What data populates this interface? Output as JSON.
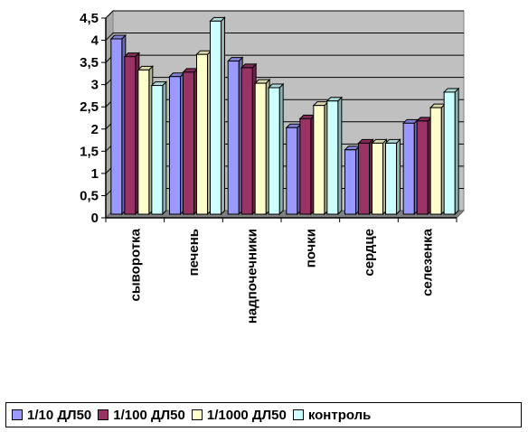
{
  "chart_data": {
    "type": "bar",
    "title": "",
    "xlabel": "",
    "ylabel": "",
    "ylim": [
      0,
      4.5
    ],
    "yticks": [
      "0",
      "0,5",
      "1",
      "1,5",
      "2",
      "2,5",
      "3",
      "3,5",
      "4",
      "4,5"
    ],
    "grid": true,
    "legend_position": "bottom",
    "categories": [
      "сыворотка",
      "печень",
      "надпочечники",
      "почки",
      "сердце",
      "селезенка"
    ],
    "series": [
      {
        "name": "1/10 ДЛ50",
        "color": "#9999ff",
        "values": [
          3.95,
          3.1,
          3.45,
          1.95,
          1.45,
          2.05
        ]
      },
      {
        "name": "1/100 ДЛ50",
        "color": "#993366",
        "values": [
          3.55,
          3.2,
          3.3,
          2.15,
          1.6,
          2.1
        ]
      },
      {
        "name": "1/1000 ДЛ50",
        "color": "#ffffcc",
        "values": [
          3.25,
          3.6,
          2.95,
          2.45,
          1.6,
          2.4
        ]
      },
      {
        "name": "контроль",
        "color": "#ccffff",
        "values": [
          2.9,
          4.35,
          2.85,
          2.55,
          1.6,
          2.75
        ]
      }
    ]
  }
}
